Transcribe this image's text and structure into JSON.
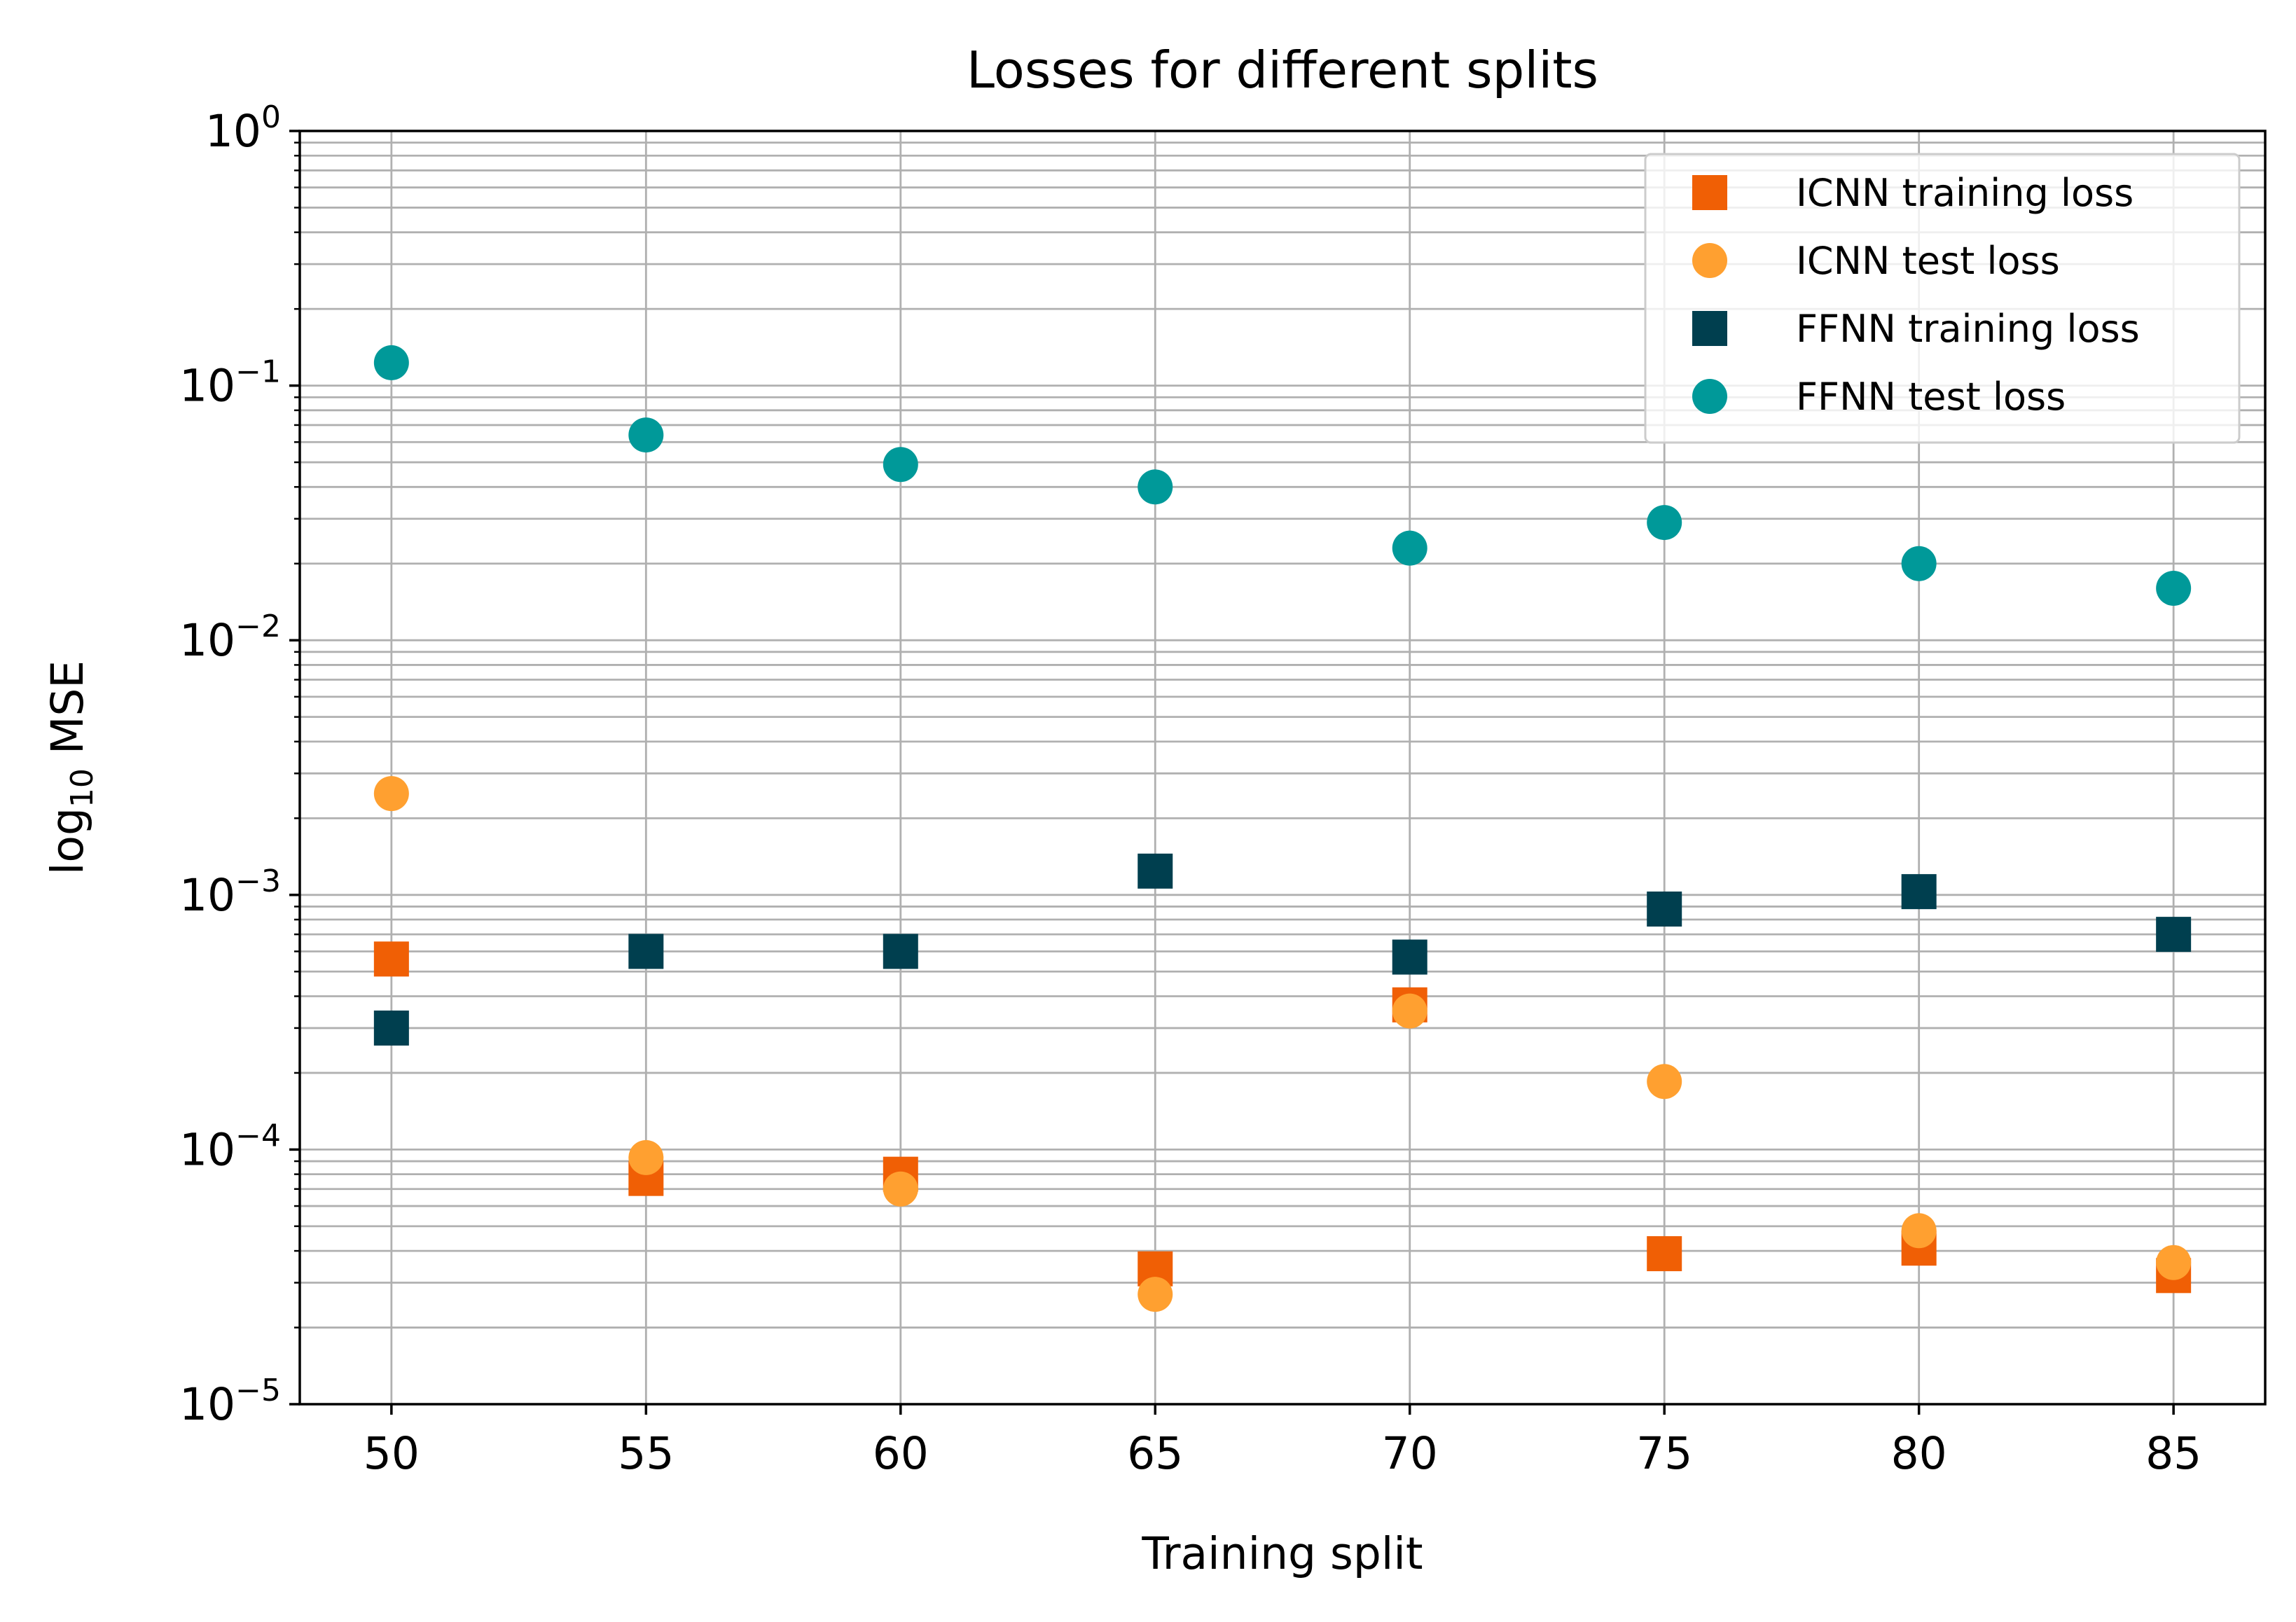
{
  "chart_data": {
    "type": "scatter",
    "title": "Losses for different splits",
    "xlabel": "Training split",
    "ylabel": {
      "prefix": "log",
      "subscript": "10",
      "suffix": " MSE"
    },
    "xlim": [
      48.2,
      86.8
    ],
    "ylim": [
      1e-05,
      1
    ],
    "yscale": "log",
    "grid": "major and minor (both axes major, y minor)",
    "legend_position": "top-right",
    "x_ticks": [
      50,
      55,
      60,
      65,
      70,
      75,
      80,
      85
    ],
    "x_tick_labels": [
      "50",
      "55",
      "60",
      "65",
      "70",
      "75",
      "80",
      "85"
    ],
    "y_ticks": [
      {
        "value": 1e-05,
        "base": "10",
        "exp": "−5"
      },
      {
        "value": 0.0001,
        "base": "10",
        "exp": "−4"
      },
      {
        "value": 0.001,
        "base": "10",
        "exp": "−3"
      },
      {
        "value": 0.01,
        "base": "10",
        "exp": "−2"
      },
      {
        "value": 0.1,
        "base": "10",
        "exp": "−1"
      },
      {
        "value": 1,
        "base": "10",
        "exp": "0"
      }
    ],
    "x": [
      50,
      55,
      60,
      65,
      70,
      75,
      80,
      85
    ],
    "series": [
      {
        "name": "ICNN training loss",
        "marker": "square",
        "color": "#f05f05",
        "values": [
          0.00056,
          7.7e-05,
          8e-05,
          3.4e-05,
          0.00037,
          3.9e-05,
          4.1e-05,
          3.2e-05
        ]
      },
      {
        "name": "ICNN test loss",
        "marker": "circle",
        "color": "#ffa030",
        "values": [
          0.0025,
          9.3e-05,
          7e-05,
          2.7e-05,
          0.00035,
          0.000185,
          4.8e-05,
          3.6e-05
        ]
      },
      {
        "name": "FFNN training loss",
        "marker": "square",
        "color": "#003f4f",
        "values": [
          0.0003,
          0.0006,
          0.0006,
          0.00124,
          0.00057,
          0.00088,
          0.00103,
          0.0007
        ]
      },
      {
        "name": "FFNN test loss",
        "marker": "circle",
        "color": "#009999",
        "values": [
          0.123,
          0.064,
          0.049,
          0.04,
          0.023,
          0.029,
          0.02,
          0.016
        ]
      }
    ]
  }
}
